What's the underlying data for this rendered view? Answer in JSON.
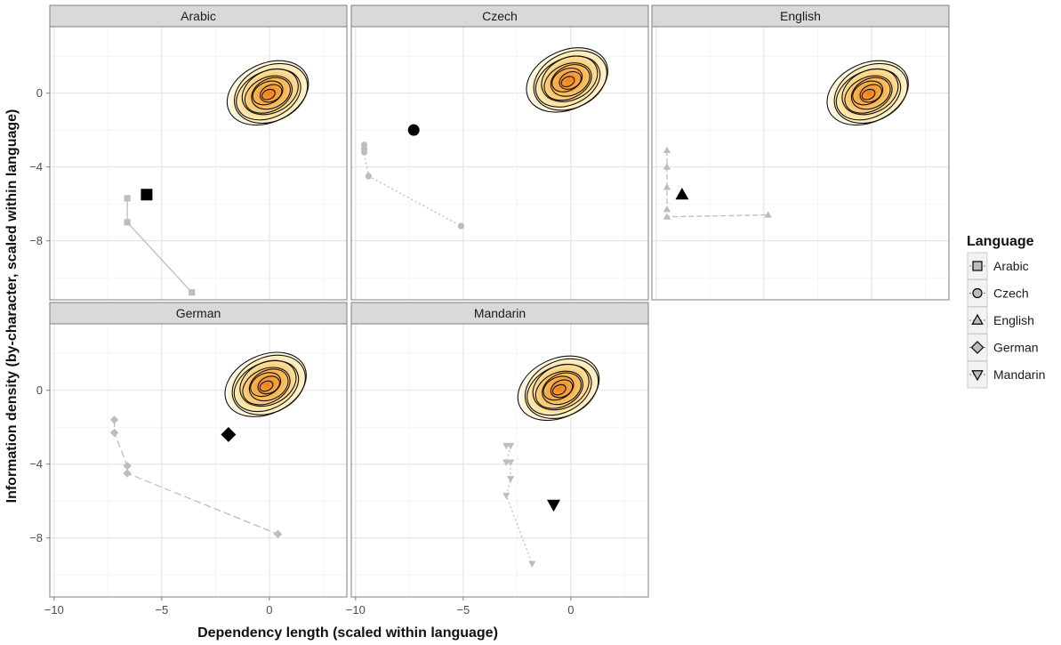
{
  "chart_data": {
    "type": "scatter",
    "xlabel": "Dependency length (scaled within language)",
    "ylabel": "Information density (by-character, scaled within language)",
    "xlim": [
      -10.2,
      3.6
    ],
    "ylim": [
      -11.2,
      3.6
    ],
    "x_ticks": [
      -10,
      -5,
      0
    ],
    "y_ticks": [
      0,
      -4,
      -8
    ],
    "x_tick_labels": [
      "−10",
      "−5",
      "0"
    ],
    "y_tick_labels": [
      "0",
      "−4",
      "−8"
    ],
    "grid": true,
    "legend_position": "right",
    "legend": {
      "title": "Language",
      "entries": [
        "Arabic",
        "Czech",
        "English",
        "German",
        "Mandarin"
      ]
    },
    "panels": [
      {
        "name": "Arabic",
        "shape": "square",
        "line_style": "solid",
        "baselines": [
          {
            "x": -6.6,
            "y": -5.7
          },
          {
            "x": -6.6,
            "y": -7.0
          },
          {
            "x": -3.6,
            "y": -10.8
          }
        ],
        "observed": {
          "x": -5.7,
          "y": -5.5
        },
        "density_center": {
          "x": 0.0,
          "y": 0.0
        }
      },
      {
        "name": "Czech",
        "shape": "circle",
        "line_style": "dotted",
        "baselines": [
          {
            "x": -9.6,
            "y": -2.8
          },
          {
            "x": -9.6,
            "y": -3.0
          },
          {
            "x": -9.6,
            "y": -3.2
          },
          {
            "x": -9.4,
            "y": -4.5
          },
          {
            "x": -5.1,
            "y": -7.2
          }
        ],
        "observed": {
          "x": -7.3,
          "y": -2.0
        },
        "density_center": {
          "x": -0.1,
          "y": 0.7
        }
      },
      {
        "name": "English",
        "shape": "triangle-up",
        "line_style": "dashed",
        "baselines": [
          {
            "x": -9.5,
            "y": -3.1
          },
          {
            "x": -9.5,
            "y": -4.0
          },
          {
            "x": -9.5,
            "y": -5.1
          },
          {
            "x": -9.5,
            "y": -6.3
          },
          {
            "x": -9.5,
            "y": -6.7
          },
          {
            "x": -4.8,
            "y": -6.6
          }
        ],
        "observed": {
          "x": -8.8,
          "y": -5.5
        },
        "density_center": {
          "x": -0.1,
          "y": 0.0
        }
      },
      {
        "name": "German",
        "shape": "diamond",
        "line_style": "longdash",
        "baselines": [
          {
            "x": -7.2,
            "y": -1.6
          },
          {
            "x": -7.2,
            "y": -2.3
          },
          {
            "x": -6.6,
            "y": -4.1
          },
          {
            "x": -6.6,
            "y": -4.5
          },
          {
            "x": 0.4,
            "y": -7.8
          }
        ],
        "observed": {
          "x": -1.9,
          "y": -2.4
        },
        "density_center": {
          "x": -0.1,
          "y": 0.3
        }
      },
      {
        "name": "Mandarin",
        "shape": "triangle-down",
        "line_style": "dotted",
        "baselines": [
          {
            "x": -3.0,
            "y": -3.0
          },
          {
            "x": -2.8,
            "y": -3.0
          },
          {
            "x": -3.0,
            "y": -3.9
          },
          {
            "x": -2.8,
            "y": -3.9
          },
          {
            "x": -2.8,
            "y": -4.8
          },
          {
            "x": -3.0,
            "y": -5.7
          },
          {
            "x": -1.8,
            "y": -9.4
          }
        ],
        "observed": {
          "x": -0.8,
          "y": -6.2
        },
        "density_center": {
          "x": -0.5,
          "y": 0.1
        }
      }
    ]
  }
}
